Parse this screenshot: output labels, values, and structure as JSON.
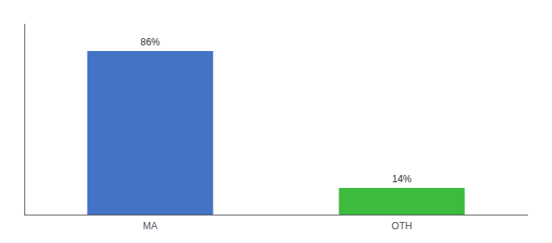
{
  "chart_data": {
    "type": "bar",
    "categories": [
      "MA",
      "OTH"
    ],
    "values": [
      86,
      14
    ],
    "value_labels": [
      "86%",
      "14%"
    ],
    "colors": [
      "#4472c4",
      "#3dbb3d"
    ],
    "ylim": [
      0,
      100
    ],
    "grid": false,
    "data_labels": true,
    "tick_labels": "x"
  }
}
